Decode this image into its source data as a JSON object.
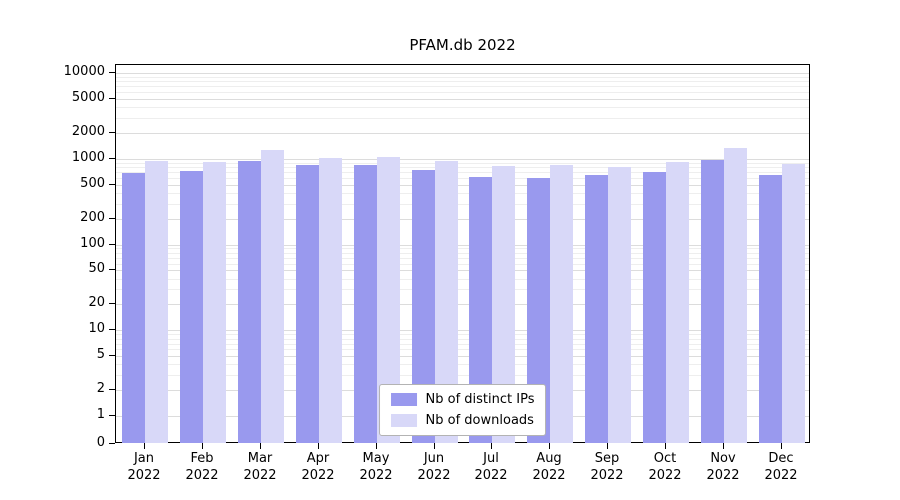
{
  "figure": {
    "title": "PFAM.db 2022"
  },
  "chart_data": {
    "type": "bar",
    "title": "PFAM.db 2022",
    "categories": [
      "Jan",
      "Feb",
      "Mar",
      "Apr",
      "May",
      "Jun",
      "Jul",
      "Aug",
      "Sep",
      "Oct",
      "Nov",
      "Dec"
    ],
    "year": "2022",
    "series": [
      {
        "name": "Nb of distinct IPs",
        "color": "#9999ee",
        "values": [
          680,
          720,
          930,
          850,
          840,
          740,
          610,
          590,
          650,
          710,
          980,
          650
        ]
      },
      {
        "name": "Nb of downloads",
        "color": "#d8d8f8",
        "values": [
          930,
          910,
          1250,
          1020,
          1060,
          930,
          820,
          840,
          800,
          910,
          1350,
          870
        ]
      }
    ],
    "yscale": "symlog",
    "yticks": [
      0,
      1,
      2,
      5,
      10,
      20,
      50,
      100,
      200,
      500,
      1000,
      2000,
      5000,
      10000
    ],
    "ylim": [
      0,
      13000
    ],
    "xlabel": "",
    "ylabel": "",
    "grid": "horizontal",
    "legend_position": "lower center"
  }
}
